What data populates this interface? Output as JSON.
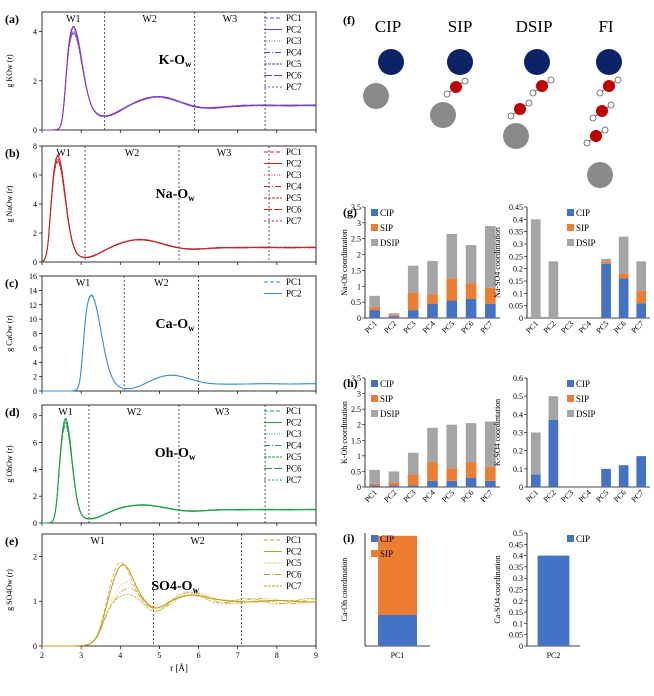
{
  "figure_f": {
    "label": "(f)",
    "headers": [
      "CIP",
      "SIP",
      "DSIP",
      "FI"
    ],
    "colors": {
      "cation": "#0c2366",
      "anion": "#8a8a8a",
      "oxygen": "#c00000",
      "hydrogen": "#888888"
    }
  },
  "rdf_x_axis": {
    "label": "r [Å]",
    "ticks": [
      "2",
      "3",
      "4",
      "5",
      "6",
      "7",
      "8",
      "9"
    ]
  },
  "chart_data": [
    {
      "type": "line",
      "panel": "(a)",
      "title": "K-Ow",
      "ylabel": "g KOw (r)",
      "ylim": [
        0,
        4.8
      ],
      "yticks": [
        "0",
        "2",
        "4"
      ],
      "xlim": [
        2,
        9
      ],
      "windows": [
        "W1",
        "W2",
        "W3"
      ],
      "window_lines": [
        3.6,
        5.9,
        7.7
      ],
      "color": "#7b3fbf",
      "legend": [
        "PC1",
        "PC2",
        "PC3",
        "PC4",
        "PC5",
        "PC6",
        "PC7"
      ],
      "peak": {
        "r": 2.8,
        "g": 4.3
      },
      "min": {
        "r": 3.6,
        "g": 0.55
      }
    },
    {
      "type": "line",
      "panel": "(b)",
      "title": "Na-Ow",
      "ylabel": "g NaOw (r)",
      "ylim": [
        0,
        8
      ],
      "yticks": [
        "0",
        "2",
        "4",
        "6",
        "8"
      ],
      "xlim": [
        2,
        9
      ],
      "windows": [
        "W1",
        "W2",
        "W3"
      ],
      "window_lines": [
        3.1,
        5.5,
        7.8
      ],
      "color": "#c0282a",
      "legend": [
        "PC1",
        "PC2",
        "PC3",
        "PC4",
        "PC5",
        "PC6",
        "PC7"
      ],
      "peak": {
        "r": 2.4,
        "g": 7.6
      },
      "min": {
        "r": 3.1,
        "g": 0.3
      }
    },
    {
      "type": "line",
      "panel": "(c)",
      "title": "Ca-Ow",
      "ylabel": "g CaOw (r)",
      "ylim": [
        0,
        16
      ],
      "yticks": [
        "0",
        "2",
        "4",
        "6",
        "8",
        "10",
        "12",
        "14",
        "16"
      ],
      "xlim": [
        2,
        9
      ],
      "windows": [
        "W1",
        "W2"
      ],
      "window_lines": [
        4.1,
        6.0
      ],
      "color": "#3b8fd0",
      "legend": [
        "PC1",
        "PC2"
      ],
      "peak": {
        "r": 3.25,
        "g": 13.6
      },
      "min": {
        "r": 4.2,
        "g": 0.2
      }
    },
    {
      "type": "line",
      "panel": "(d)",
      "title": "Oh-Ow",
      "ylabel": "g OhOw (r)",
      "ylim": [
        0,
        8.8
      ],
      "yticks": [
        "0",
        "2",
        "4",
        "6",
        "8"
      ],
      "xlim": [
        2,
        9
      ],
      "windows": [
        "W1",
        "W2",
        "W3"
      ],
      "window_lines": [
        3.2,
        5.5,
        7.7
      ],
      "color": "#1ea04a",
      "legend": [
        "PC1",
        "PC2",
        "PC3",
        "PC4",
        "PC5",
        "PC6",
        "PC7"
      ],
      "peak": {
        "r": 2.6,
        "g": 8.1
      },
      "min": {
        "r": 3.2,
        "g": 0.3
      }
    },
    {
      "type": "line",
      "panel": "(e)",
      "title": "SO4-Ow",
      "ylabel": "g SO4Ow (r)",
      "ylim": [
        0,
        2.5
      ],
      "yticks": [
        "0",
        "1",
        "2"
      ],
      "xlim": [
        2,
        9
      ],
      "windows": [
        "W1",
        "W2"
      ],
      "window_lines": [
        4.85,
        7.1
      ],
      "color": "#c8a020",
      "legend": [
        "PC1",
        "PC2",
        "PC5",
        "PC6",
        "PC7"
      ],
      "peak": {
        "r": 4.0,
        "g": 1.9
      },
      "min": {
        "r": 4.85,
        "g": 0.85
      }
    },
    {
      "type": "bar",
      "panel": "(g)",
      "ylabel": "Na-Oh coordintation",
      "ylim": [
        0,
        3.5
      ],
      "yticks": [
        "0",
        "0.5",
        "1",
        "1.5",
        "2",
        "2.5",
        "3",
        "3.5"
      ],
      "categories": [
        "PC1",
        "PC2",
        "PC3",
        "PC4",
        "PC5",
        "PC6",
        "PC7"
      ],
      "series": [
        {
          "name": "CIP",
          "color": "#4472c4",
          "values": [
            0.25,
            0.05,
            0.25,
            0.45,
            0.55,
            0.6,
            0.45
          ]
        },
        {
          "name": "SIP",
          "color": "#ed7d31",
          "values": [
            0.1,
            0.05,
            0.55,
            0.3,
            0.7,
            0.5,
            0.5
          ]
        },
        {
          "name": "DSIP",
          "color": "#a5a5a5",
          "values": [
            0.35,
            0.05,
            0.85,
            1.05,
            1.4,
            1.2,
            1.95
          ]
        }
      ]
    },
    {
      "type": "bar",
      "panel": "(g)",
      "ylabel": "Na-SO4 coordintation",
      "ylim": [
        0,
        0.45
      ],
      "yticks": [
        "0",
        "0.05",
        "0.1",
        "0.15",
        "0.2",
        "0.25",
        "0.3",
        "0.35",
        "0.4",
        "0.45"
      ],
      "categories": [
        "PC1",
        "PC2",
        "PC3",
        "PC4",
        "PC5",
        "PC6",
        "PC7"
      ],
      "series": [
        {
          "name": "CIP",
          "color": "#4472c4",
          "values": [
            0,
            0,
            0,
            0,
            0.22,
            0.16,
            0.06
          ]
        },
        {
          "name": "SIP",
          "color": "#ed7d31",
          "values": [
            0,
            0,
            0,
            0,
            0.01,
            0.02,
            0.05
          ]
        },
        {
          "name": "DSIP",
          "color": "#a5a5a5",
          "values": [
            0.4,
            0.23,
            0,
            0,
            0.01,
            0.15,
            0.12
          ]
        }
      ]
    },
    {
      "type": "bar",
      "panel": "(h)",
      "ylabel": "K-Oh coordintation",
      "ylim": [
        0,
        3.5
      ],
      "yticks": [
        "0",
        "0.5",
        "1",
        "1.5",
        "2",
        "2.5",
        "3",
        "3.5"
      ],
      "categories": [
        "PC1",
        "PC2",
        "PC3",
        "PC4",
        "PC5",
        "PC6",
        "PC7"
      ],
      "series": [
        {
          "name": "CIP",
          "color": "#4472c4",
          "values": [
            0.05,
            0.05,
            0.05,
            0.2,
            0.2,
            0.3,
            0.2
          ]
        },
        {
          "name": "SIP",
          "color": "#ed7d31",
          "values": [
            0.05,
            0.1,
            0.35,
            0.6,
            0.4,
            0.5,
            0.45
          ]
        },
        {
          "name": "DSIP",
          "color": "#a5a5a5",
          "values": [
            0.45,
            0.35,
            0.7,
            1.1,
            1.4,
            1.25,
            1.45
          ]
        }
      ]
    },
    {
      "type": "bar",
      "panel": "(h)",
      "ylabel": "K-SO4 coordintation",
      "ylim": [
        0,
        0.6
      ],
      "yticks": [
        "0",
        "0.1",
        "0.2",
        "0.3",
        "0.4",
        "0.5",
        "0.6"
      ],
      "categories": [
        "PC1",
        "PC2",
        "PC3",
        "PC4",
        "PC5",
        "PC6",
        "PC7"
      ],
      "series": [
        {
          "name": "CIP",
          "color": "#4472c4",
          "values": [
            0.07,
            0.37,
            0,
            0,
            0.1,
            0.12,
            0.17
          ]
        },
        {
          "name": "SIP",
          "color": "#ed7d31",
          "values": [
            0,
            0,
            0,
            0,
            0,
            0,
            0
          ]
        },
        {
          "name": "DSIP",
          "color": "#a5a5a5",
          "values": [
            0.23,
            0.13,
            0,
            0,
            0,
            0,
            0
          ]
        }
      ]
    },
    {
      "type": "bar",
      "panel": "(i)",
      "ylabel": "Ca-Oh coordination",
      "ylim": [
        0,
        2
      ],
      "yticks": [],
      "categories": [
        "PC1"
      ],
      "series": [
        {
          "name": "CIP",
          "color": "#4472c4",
          "values": [
            0.55
          ]
        },
        {
          "name": "SIP",
          "color": "#ed7d31",
          "values": [
            1.4
          ]
        }
      ]
    },
    {
      "type": "bar",
      "panel": "(i)",
      "ylabel": "Ca-SO4 coordination",
      "ylim": [
        0,
        0.5
      ],
      "yticks": [
        "0",
        "0.05",
        "0.1",
        "0.15",
        "0.2",
        "0.25",
        "0.3",
        "0.35",
        "0.4",
        "0.45",
        "0.5"
      ],
      "categories": [
        "PC2"
      ],
      "series": [
        {
          "name": "CIP",
          "color": "#4472c4",
          "values": [
            0.4
          ]
        }
      ]
    }
  ]
}
